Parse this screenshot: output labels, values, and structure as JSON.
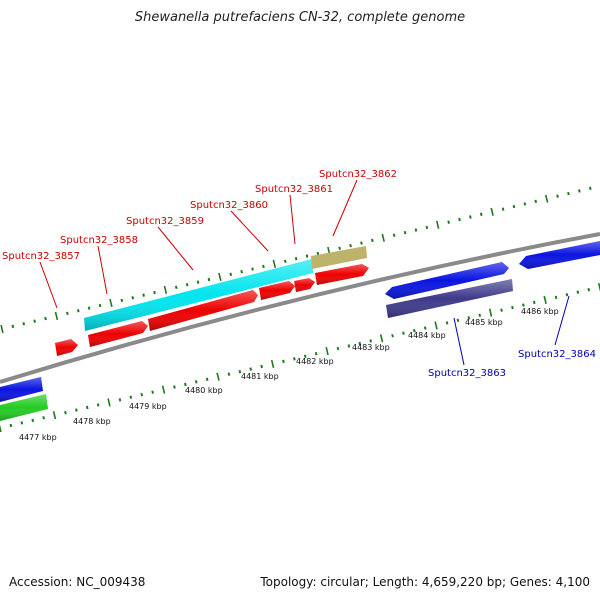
{
  "title": "Shewanella putrefaciens CN-32, complete genome",
  "footer": {
    "accession": "Accession: NC_009438",
    "stats": "Topology: circular; Length: 4,659,220 bp; Genes: 4,100"
  },
  "colors": {
    "backbone": "#8a8a8a",
    "tick": "#1f7a1f",
    "forward_label": "#cc0000",
    "reverse_label": "#0000bb"
  },
  "kbp_labels": [
    {
      "kbp": 4477,
      "text": "4477 kbp"
    },
    {
      "kbp": 4478,
      "text": "4478 kbp"
    },
    {
      "kbp": 4479,
      "text": "4479 kbp"
    },
    {
      "kbp": 4480,
      "text": "4480 kbp"
    },
    {
      "kbp": 4481,
      "text": "4481 kbp"
    },
    {
      "kbp": 4482,
      "text": "4482 kbp"
    },
    {
      "kbp": 4483,
      "text": "4483 kbp"
    },
    {
      "kbp": 4484,
      "text": "4484 kbp"
    },
    {
      "kbp": 4485,
      "text": "4485 kbp"
    },
    {
      "kbp": 4486,
      "text": "4486 kbp"
    }
  ],
  "gene_labels": [
    {
      "id": "g3857",
      "text": "Sputcn32_3857",
      "color": "#cc0000"
    },
    {
      "id": "g3858",
      "text": "Sputcn32_3858",
      "color": "#cc0000"
    },
    {
      "id": "g3859",
      "text": "Sputcn32_3859",
      "color": "#cc0000"
    },
    {
      "id": "g3860",
      "text": "Sputcn32_3860",
      "color": "#cc0000"
    },
    {
      "id": "g3861",
      "text": "Sputcn32_3861",
      "color": "#cc0000"
    },
    {
      "id": "g3862",
      "text": "Sputcn32_3862",
      "color": "#cc0000"
    },
    {
      "id": "g3863",
      "text": "Sputcn32_3863",
      "color": "#0000bb"
    },
    {
      "id": "g3864",
      "text": "Sputcn32_3864",
      "color": "#0000bb"
    }
  ]
}
